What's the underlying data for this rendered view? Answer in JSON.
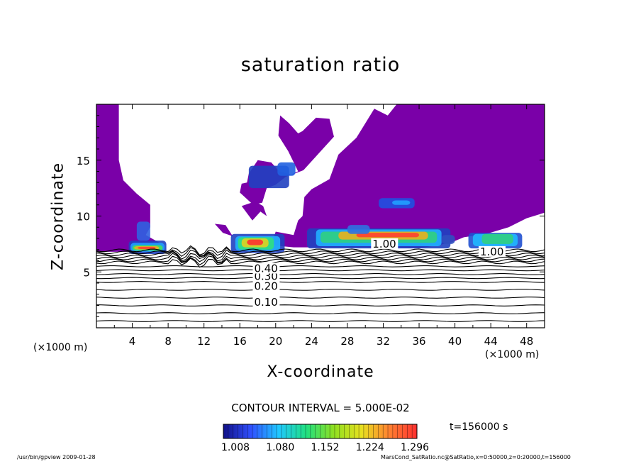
{
  "chart_data": {
    "type": "heatmap",
    "title": "saturation ratio",
    "xlabel": "X-coordinate",
    "ylabel": "Z-coordinate",
    "x_unit_left": "(×1000 m)",
    "x_unit_right": "(×1000 m)",
    "xlim": [
      0,
      50
    ],
    "ylim": [
      0,
      20
    ],
    "x_ticks": [
      "4",
      "8",
      "12",
      "16",
      "20",
      "24",
      "28",
      "32",
      "36",
      "40",
      "44",
      "48"
    ],
    "y_ticks": [
      "5",
      "10",
      "15"
    ],
    "contour_interval_label": "CONTOUR INTERVAL = 5.000E-02",
    "contour_labels": [
      {
        "text": "0.10",
        "x": 17.6,
        "z": 2.3
      },
      {
        "text": "0.20",
        "x": 17.6,
        "z": 3.7
      },
      {
        "text": "0.30",
        "x": 17.6,
        "z": 4.6
      },
      {
        "text": "0.40",
        "x": 17.6,
        "z": 5.3
      },
      {
        "text": "1.00",
        "x": 30.8,
        "z": 7.5
      },
      {
        "text": "1.00",
        "x": 42.8,
        "z": 6.8
      }
    ],
    "colorbar": {
      "ticks": [
        "1.008",
        "1.080",
        "1.152",
        "1.224",
        "1.296"
      ],
      "colors": [
        "#101088",
        "#3050ff",
        "#20c8ff",
        "#20e080",
        "#90e020",
        "#e8e020",
        "#ff8030",
        "#ff3030"
      ]
    },
    "time_label": "t=156000 s",
    "undersaturated_color": "#7a00a8"
  },
  "footer": {
    "left": "/usr/bin/gpview   2009-01-28",
    "right": "MarsCond_SatRatio.nc@SatRatio,x=0:50000,z=0:20000,t=156000"
  }
}
